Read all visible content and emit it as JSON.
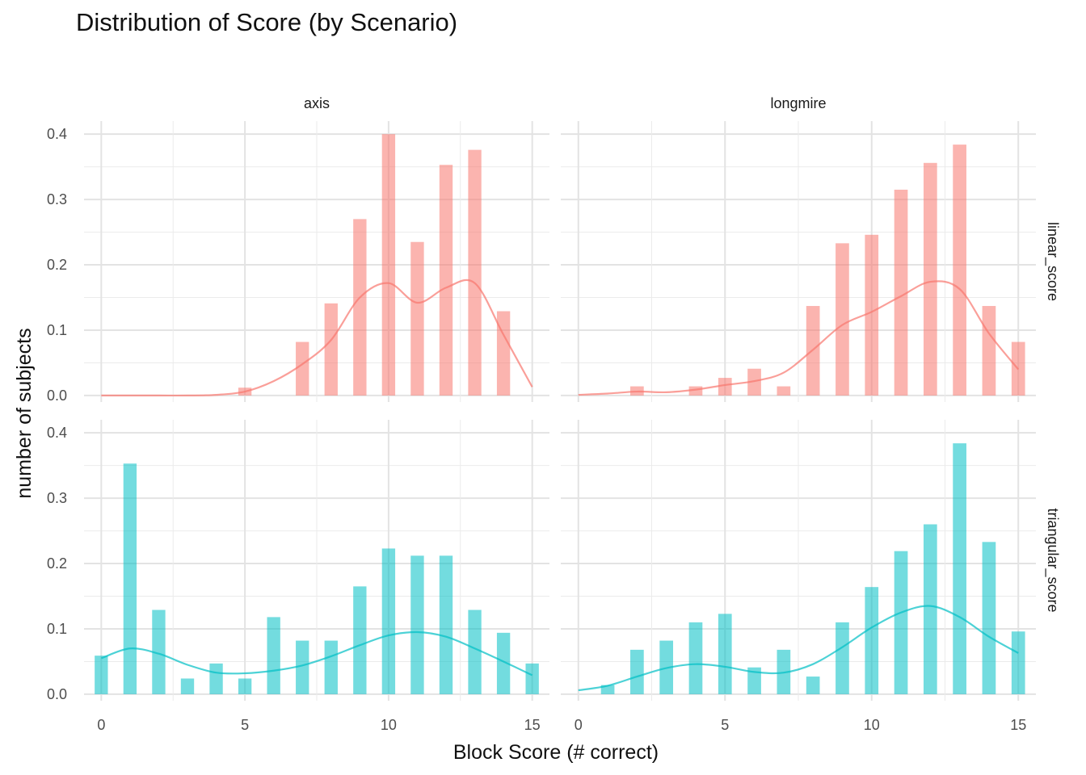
{
  "chart_data": {
    "type": "bar",
    "title": "Distribution of Score (by Scenario)",
    "xlabel": "Block Score (# correct)",
    "ylabel": "number of subjects",
    "xlim": [
      -0.6,
      15.6
    ],
    "ylim": [
      -0.01,
      0.42
    ],
    "x_ticks": [
      0,
      5,
      10,
      15
    ],
    "y_ticks": [
      0.0,
      0.1,
      0.2,
      0.3,
      0.4
    ],
    "y_tick_labels": [
      "0.0",
      "0.1",
      "0.2",
      "0.3",
      "0.4"
    ],
    "grid": true,
    "legend": "none",
    "col_facets": [
      "axis",
      "longmire"
    ],
    "row_facets": [
      "linear_score",
      "triangular_score"
    ],
    "row_colors": [
      "#F8766D",
      "#00BFC4"
    ],
    "panels": [
      {
        "col": "axis",
        "row": "linear_score",
        "x": [
          5,
          7,
          8,
          9,
          10,
          11,
          12,
          13,
          14
        ],
        "values": [
          0.012,
          0.082,
          0.141,
          0.27,
          0.4,
          0.235,
          0.353,
          0.376,
          0.129
        ],
        "density_x": [
          0,
          1,
          2,
          3,
          4,
          5,
          6,
          7,
          8,
          9,
          10,
          11,
          12,
          13,
          14,
          15
        ],
        "density_y": [
          0.0,
          0.0,
          0.0,
          0.0,
          0.001,
          0.006,
          0.022,
          0.048,
          0.085,
          0.15,
          0.172,
          0.142,
          0.165,
          0.172,
          0.093,
          0.013
        ]
      },
      {
        "col": "longmire",
        "row": "linear_score",
        "x": [
          2,
          4,
          5,
          6,
          7,
          8,
          9,
          10,
          11,
          12,
          13,
          14,
          15
        ],
        "values": [
          0.014,
          0.014,
          0.027,
          0.041,
          0.014,
          0.137,
          0.233,
          0.246,
          0.315,
          0.356,
          0.384,
          0.137,
          0.082
        ],
        "density_x": [
          0,
          1,
          2,
          3,
          4,
          5,
          6,
          7,
          8,
          9,
          10,
          11,
          12,
          13,
          14,
          15
        ],
        "density_y": [
          0.001,
          0.003,
          0.006,
          0.005,
          0.009,
          0.016,
          0.022,
          0.035,
          0.07,
          0.108,
          0.128,
          0.152,
          0.174,
          0.163,
          0.095,
          0.04
        ]
      },
      {
        "col": "axis",
        "row": "triangular_score",
        "x": [
          0,
          1,
          2,
          3,
          4,
          5,
          6,
          7,
          8,
          9,
          10,
          11,
          12,
          13,
          14,
          15
        ],
        "values": [
          0.059,
          0.353,
          0.129,
          0.024,
          0.047,
          0.024,
          0.118,
          0.082,
          0.082,
          0.165,
          0.223,
          0.212,
          0.212,
          0.129,
          0.094,
          0.047
        ],
        "density_x": [
          0,
          1,
          2,
          3,
          4,
          5,
          6,
          7,
          8,
          9,
          10,
          11,
          12,
          13,
          14,
          15
        ],
        "density_y": [
          0.055,
          0.07,
          0.062,
          0.045,
          0.033,
          0.032,
          0.036,
          0.044,
          0.058,
          0.075,
          0.09,
          0.095,
          0.088,
          0.07,
          0.05,
          0.029
        ]
      },
      {
        "col": "longmire",
        "row": "triangular_score",
        "x": [
          1,
          2,
          3,
          4,
          5,
          6,
          7,
          8,
          9,
          10,
          11,
          12,
          13,
          14,
          15
        ],
        "values": [
          0.014,
          0.068,
          0.082,
          0.11,
          0.123,
          0.041,
          0.068,
          0.027,
          0.11,
          0.164,
          0.219,
          0.26,
          0.384,
          0.233,
          0.096
        ],
        "density_x": [
          0,
          1,
          2,
          3,
          4,
          5,
          6,
          7,
          8,
          9,
          10,
          11,
          12,
          13,
          14,
          15
        ],
        "density_y": [
          0.006,
          0.013,
          0.027,
          0.04,
          0.046,
          0.042,
          0.034,
          0.033,
          0.046,
          0.072,
          0.102,
          0.125,
          0.135,
          0.118,
          0.088,
          0.063
        ]
      }
    ]
  }
}
